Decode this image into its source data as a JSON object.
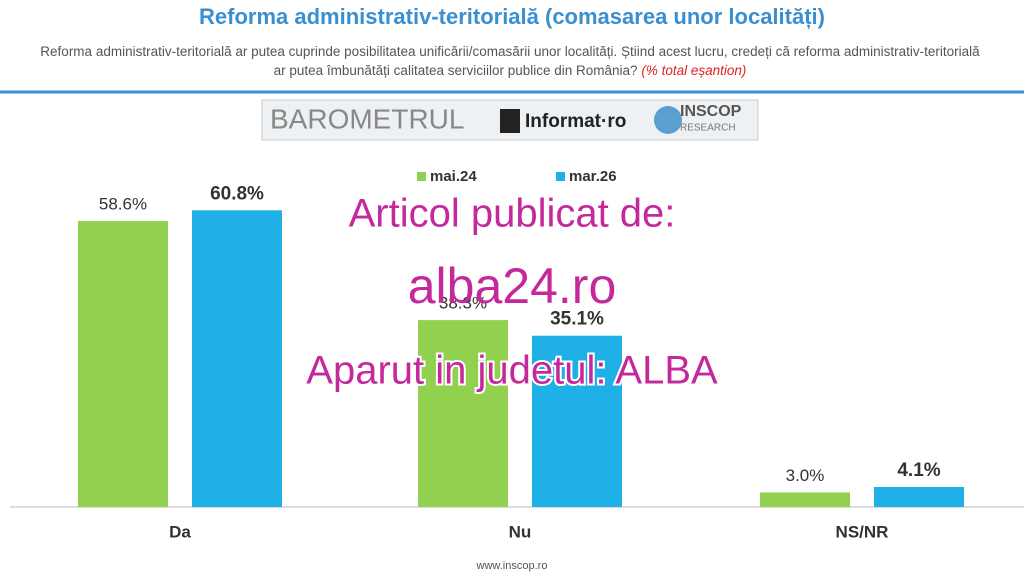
{
  "chart_data": {
    "type": "bar",
    "title": "Reforma administrativ-teritorială (comasarea unor localități)",
    "subtitle": "Reforma administrativ-teritorială ar putea cuprinde posibilitatea unificării/comasării unor localități. Știind acest lucru, credeți că reforma administrativ-teritorială ar putea îmbunătăți calitatea serviciilor publice din România?",
    "subtitle_note": "(% total eșantion)",
    "categories": [
      "Da",
      "Nu",
      "NS/NR"
    ],
    "series": [
      {
        "name": "mai.24",
        "color": "#92d050",
        "values": [
          58.6,
          38.3,
          3.0
        ],
        "value_labels": [
          "58.6%",
          "38.3%",
          "3.0%"
        ]
      },
      {
        "name": "mar.26",
        "color": "#1fb0e8",
        "values": [
          60.8,
          35.1,
          4.1
        ],
        "value_labels": [
          "60.8%",
          "35.1%",
          "4.1%"
        ]
      }
    ],
    "legend": "top"
  },
  "branding": {
    "barometer": "BAROMETRUL",
    "partner": "Informat·ro",
    "institute": "INSCOP",
    "institute_sub": "RESEARCH"
  },
  "watermark": {
    "line1": "Articol publicat de:",
    "line2": "alba24.ro",
    "line3": "Aparut in judetul: ALBA"
  },
  "footer": "www.inscop.ro"
}
